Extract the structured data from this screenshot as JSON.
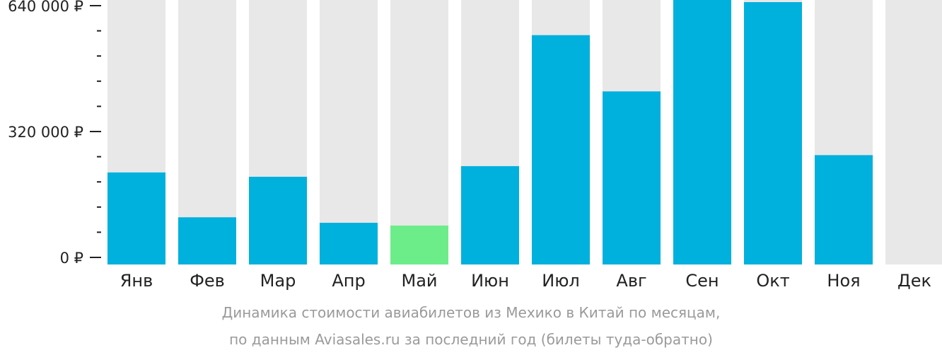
{
  "chart_data": {
    "type": "bar",
    "categories": [
      "Янв",
      "Фев",
      "Мар",
      "Апр",
      "Май",
      "Июн",
      "Июл",
      "Авг",
      "Сен",
      "Окт",
      "Ноя",
      "Дек"
    ],
    "values": [
      216000,
      102000,
      205000,
      88000,
      81000,
      232000,
      565000,
      422000,
      670000,
      649000,
      260000,
      null
    ],
    "highlight_index": 4,
    "ylim": [
      0,
      640000
    ],
    "yticks": [
      {
        "value": 0,
        "label": "0 ₽"
      },
      {
        "value": 320000,
        "label": "320 000 ₽"
      },
      {
        "value": 640000,
        "label": "640 000 ₽"
      }
    ],
    "minor_tick_step": 64000,
    "caption_line1": "Динамика стоимости авиабилетов из Мехико в Китай по месяцам,",
    "caption_line2": "по данным Aviasales.ru за последний год (билеты туда-обратно)",
    "colors": {
      "bar": "#00b0dd",
      "highlight": "#6ded8a",
      "background_bar": "#e8e8e8",
      "axis": "#222222"
    }
  }
}
